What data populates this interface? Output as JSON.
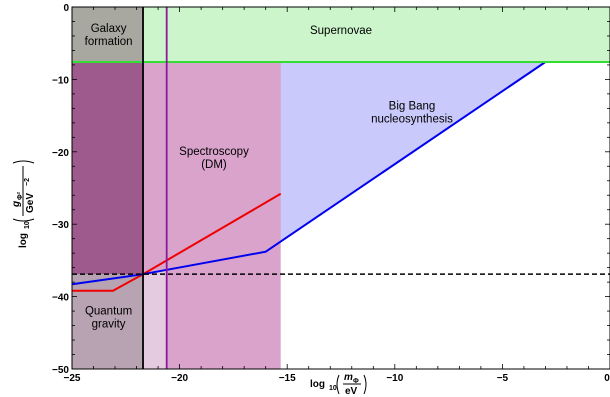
{
  "chart_data": {
    "type": "area",
    "xlim": [
      -25,
      0
    ],
    "ylim": [
      -50,
      0
    ],
    "x_ticks": [
      -25,
      -20,
      -15,
      -10,
      -5,
      0
    ],
    "y_ticks": [
      0,
      -10,
      -20,
      -30,
      -40,
      -50
    ],
    "x_tick_labels": [
      "−25",
      "−20",
      "−15",
      "−10",
      "−5",
      "0"
    ],
    "y_tick_labels": [
      "0",
      "−10",
      "−20",
      "−30",
      "−40",
      "−50"
    ],
    "xlabel": {
      "log": "log",
      "sub": "10",
      "num_var": "m",
      "num_sub": "Φ",
      "den": "eV"
    },
    "ylabel": {
      "log": "log",
      "sub": "10",
      "num_var": "g",
      "num_sub": "Φ²",
      "den": "GeV",
      "den_sup": "−2"
    },
    "regions": [
      {
        "label": [
          "Supernovae"
        ],
        "color": "#ccf5cc",
        "polygon": [
          [
            -25,
            -7.6
          ],
          [
            0,
            -7.6
          ],
          [
            0,
            0
          ],
          [
            -25,
            0
          ]
        ],
        "label_at": [
          -12.5,
          -3.2
        ]
      },
      {
        "label": [
          "Big Bang",
          "nucleosynthesis"
        ],
        "color": "#c9c9fb",
        "polygon": [
          [
            -25,
            -38.3
          ],
          [
            -21.7,
            -36.9
          ],
          [
            -16,
            -33.8
          ],
          [
            -3,
            -7.6
          ],
          [
            -25,
            -7.6
          ]
        ],
        "label_at": [
          -9.2,
          -14.5
        ]
      },
      {
        "label": [
          "Spectroscopy",
          "(DM)"
        ],
        "color": "#d9a3cc",
        "polygon": [
          [
            -21.7,
            -7.6
          ],
          [
            -15.3,
            -7.6
          ],
          [
            -15.3,
            -50
          ],
          [
            -21.7,
            -50
          ]
        ],
        "label_at": [
          -18.4,
          -20.8
        ]
      },
      {
        "label": [
          "Galaxy",
          "formation"
        ],
        "color": "#a8a8a0",
        "polygon": [
          [
            -25,
            -7.6
          ],
          [
            -21.7,
            -7.6
          ],
          [
            -21.7,
            0
          ],
          [
            -25,
            0
          ]
        ],
        "label_at": [
          -23.3,
          -3.8
        ]
      },
      {
        "label": [],
        "color": "#9e5a8c",
        "polygon": [
          [
            -25,
            -36.9
          ],
          [
            -21.7,
            -36.9
          ],
          [
            -21.7,
            -7.6
          ],
          [
            -25,
            -7.6
          ]
        ],
        "label_at": null
      },
      {
        "label": [
          "Quantum",
          "gravity"
        ],
        "color": "#b8a3b2",
        "polygon": [
          [
            -25,
            -50
          ],
          [
            -21.7,
            -50
          ],
          [
            -21.7,
            -36.9
          ],
          [
            -25,
            -36.9
          ]
        ],
        "label_at": [
          -23.3,
          -42.8
        ]
      },
      {
        "label": [],
        "color": "#e4cbe0",
        "polygon": [
          [
            -21.7,
            -50
          ],
          [
            -20.6,
            -50
          ],
          [
            -20.6,
            -36.2
          ],
          [
            -21.7,
            -36.9
          ]
        ],
        "label_at": null
      }
    ],
    "series": [
      {
        "color": "#ee0000",
        "x": [
          -25,
          -23.1,
          -21.7,
          -15.3
        ],
        "y": [
          -39.2,
          -39.2,
          -36.9,
          -25.8
        ]
      },
      {
        "color": "#0000ee",
        "x": [
          -25,
          -21.7,
          -16,
          -3
        ],
        "y": [
          -38.3,
          -36.9,
          -33.8,
          -7.6
        ]
      },
      {
        "color": "#33dd33",
        "x": [
          -25,
          0
        ],
        "y": [
          -7.6,
          -7.6
        ]
      }
    ],
    "vlines": [
      {
        "x": -21.7,
        "color": "#000000",
        "dashed": false
      },
      {
        "x": -20.6,
        "color": "#8b1a9b",
        "dashed": false
      }
    ],
    "hlines": [
      {
        "y": -36.9,
        "color": "#000000",
        "dashed": true
      }
    ]
  }
}
